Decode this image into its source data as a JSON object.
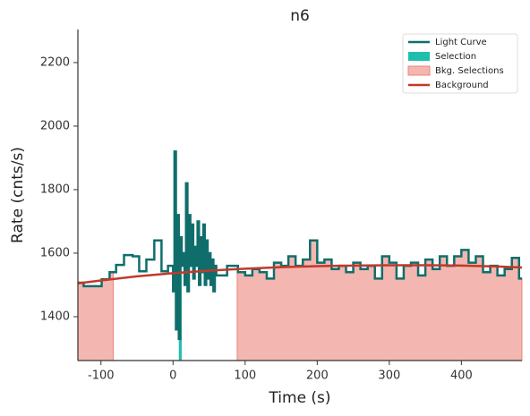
{
  "chart_data": {
    "type": "step",
    "title": "n6",
    "xlabel": "Time (s)",
    "ylabel": "Rate (cnts/s)",
    "xlim": [
      -132,
      484
    ],
    "ylim": [
      1262,
      2304
    ],
    "xticks": [
      -100,
      0,
      100,
      200,
      300,
      400
    ],
    "yticks": [
      1400,
      1600,
      1800,
      2000,
      2200
    ],
    "legend": "upper right",
    "series": [
      {
        "name": "Light Curve",
        "color": "#0f6e6b",
        "x": [
          -132,
          -124,
          -99,
          -88,
          -79,
          -68,
          -56,
          -47,
          -37,
          -26,
          -16,
          -7,
          0,
          2,
          4,
          6,
          8,
          10,
          12,
          14,
          16,
          18,
          20,
          22,
          24,
          26,
          28,
          30,
          32,
          34,
          36,
          38,
          40,
          42,
          44,
          46,
          48,
          50,
          52,
          54,
          56,
          58,
          60,
          75,
          90,
          100,
          110,
          120,
          130,
          140,
          150,
          160,
          170,
          180,
          190,
          200,
          210,
          220,
          230,
          240,
          250,
          260,
          270,
          280,
          290,
          300,
          310,
          320,
          330,
          340,
          350,
          360,
          370,
          380,
          390,
          400,
          410,
          420,
          430,
          440,
          450,
          460,
          470,
          480,
          484
        ],
        "values": [
          1507,
          1496,
          1518,
          1540,
          1563,
          1594,
          1590,
          1543,
          1580,
          1640,
          1543,
          1560,
          1480,
          1920,
          1360,
          1720,
          1330,
          1650,
          1560,
          1600,
          1500,
          1820,
          1480,
          1720,
          1560,
          1690,
          1520,
          1620,
          1560,
          1700,
          1500,
          1650,
          1540,
          1690,
          1500,
          1640,
          1520,
          1600,
          1500,
          1580,
          1480,
          1560,
          1530,
          1560,
          1540,
          1530,
          1550,
          1540,
          1520,
          1570,
          1560,
          1590,
          1560,
          1580,
          1640,
          1570,
          1580,
          1550,
          1560,
          1540,
          1570,
          1550,
          1560,
          1520,
          1590,
          1570,
          1520,
          1560,
          1570,
          1530,
          1580,
          1550,
          1590,
          1560,
          1590,
          1610,
          1570,
          1590,
          1540,
          1560,
          1530,
          1550,
          1585,
          1520,
          1520
        ]
      },
      {
        "name": "Background",
        "color": "#c0392b",
        "x": [
          -132,
          -100,
          -50,
          0,
          50,
          100,
          150,
          200,
          250,
          300,
          350,
          400,
          450,
          484
        ],
        "values": [
          1505,
          1514,
          1527,
          1537,
          1545,
          1551,
          1556,
          1559,
          1561,
          1562,
          1562,
          1561,
          1558,
          1555
        ]
      }
    ],
    "selection": {
      "name": "Selection",
      "color": "#1fbfad",
      "ranges": [
        [
          8,
          12
        ]
      ]
    },
    "bkg_selections": {
      "name": "Bkg. Selections",
      "color": "#f4b6b0",
      "ranges": [
        [
          -132,
          -83
        ],
        [
          89,
          484
        ]
      ]
    }
  }
}
